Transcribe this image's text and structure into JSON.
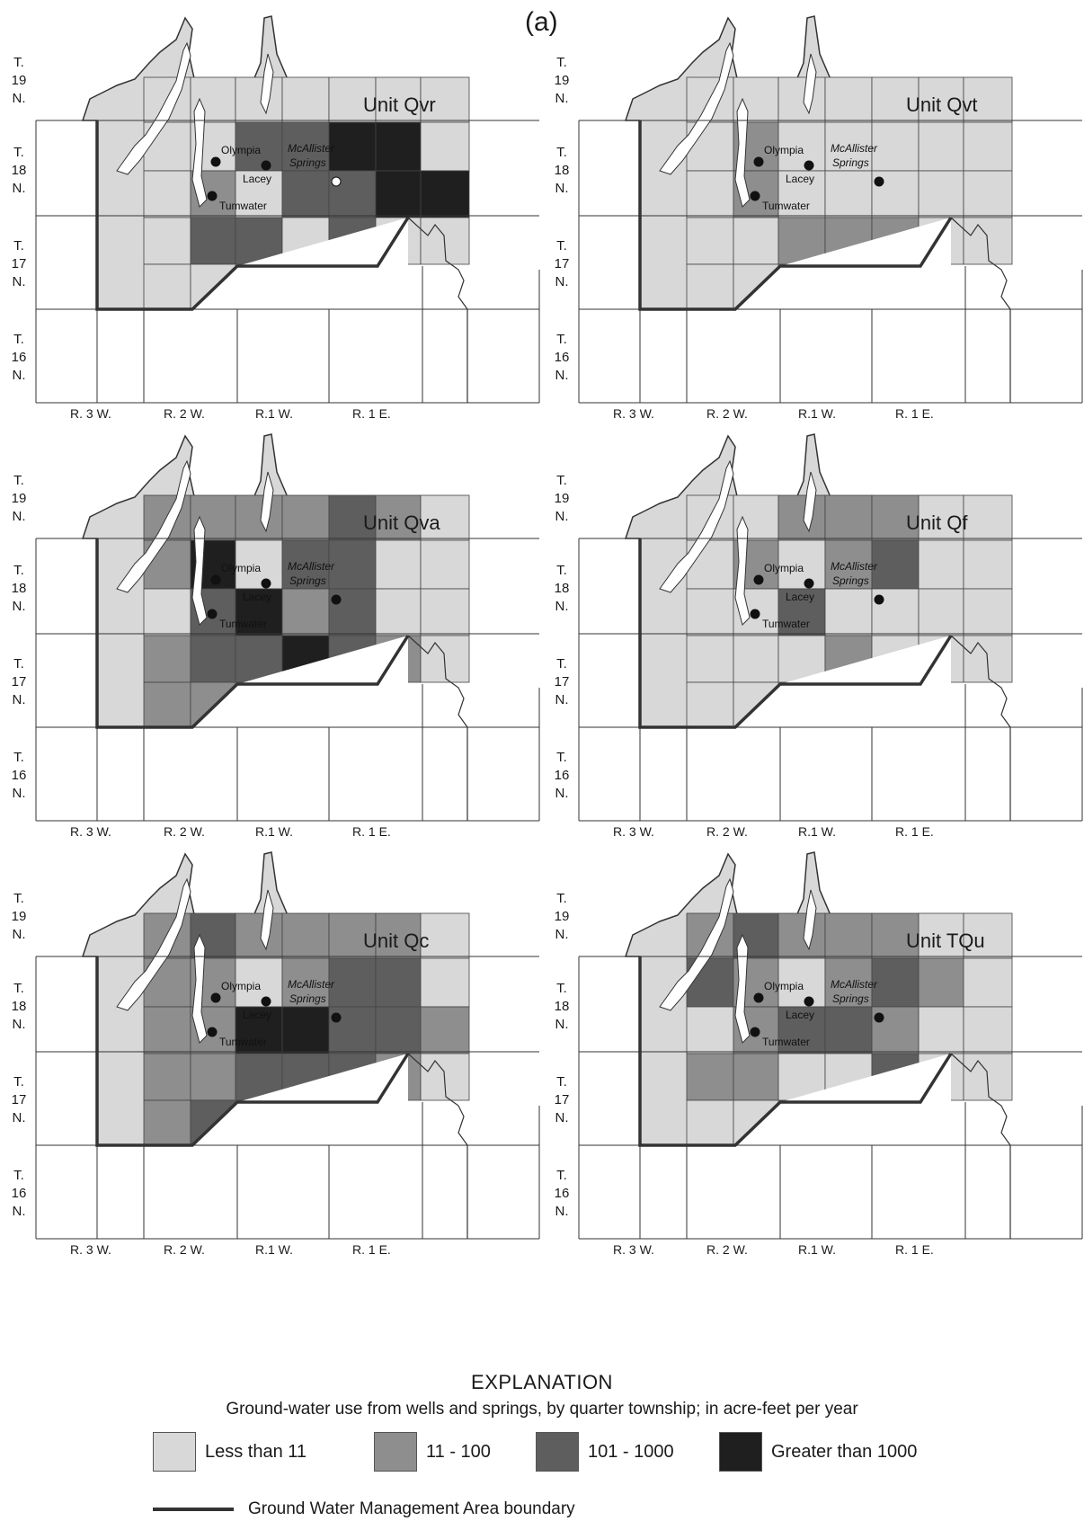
{
  "figure_label": "(a)",
  "colors": {
    "class0": "#d8d8d8",
    "class1": "#8e8e8e",
    "class2": "#5e5e5e",
    "class3": "#1f1f1f",
    "lines": "#333333",
    "water": "#ffffff"
  },
  "township_labels": [
    [
      "T.",
      "19",
      "N."
    ],
    [
      "T.",
      "18",
      "N."
    ],
    [
      "T.",
      "17",
      "N."
    ],
    [
      "T.",
      "16",
      "N."
    ]
  ],
  "range_labels": [
    "R. 3 W.",
    "R. 2 W.",
    "R.1 W.",
    "R. 1 E."
  ],
  "places": {
    "olympia": "Olympia",
    "lacey": "Lacey",
    "tumwater": "Tumwater",
    "mcallister1": "McAllister",
    "mcallister2": "Springs"
  },
  "panels": [
    {
      "title": "Unit Qvr",
      "cells": {
        "r1": [
          null,
          0,
          0,
          2,
          2,
          3,
          3,
          0
        ],
        "r2": [
          null,
          0,
          1,
          0,
          2,
          2,
          3,
          3
        ],
        "r3": [
          null,
          0,
          2,
          2,
          0,
          2,
          0,
          0
        ],
        "r4": [
          null,
          0,
          0,
          null,
          null,
          null,
          null,
          null
        ],
        "r0": [
          null,
          0,
          0,
          0,
          0,
          0,
          0,
          0
        ]
      }
    },
    {
      "title": "Unit Qvt",
      "cells": {
        "r1": [
          null,
          0,
          1,
          0,
          0,
          0,
          0,
          0
        ],
        "r2": [
          null,
          0,
          1,
          0,
          0,
          0,
          0,
          0
        ],
        "r3": [
          null,
          0,
          0,
          1,
          1,
          1,
          0,
          0
        ],
        "r4": [
          null,
          0,
          0,
          null,
          null,
          null,
          null,
          null
        ],
        "r0": [
          null,
          0,
          0,
          0,
          0,
          0,
          0,
          0
        ]
      }
    },
    {
      "title": "Unit Qva",
      "cells": {
        "r1": [
          null,
          1,
          3,
          0,
          2,
          2,
          0,
          0
        ],
        "r2": [
          null,
          0,
          2,
          3,
          1,
          2,
          0,
          0
        ],
        "r3": [
          null,
          1,
          2,
          2,
          3,
          2,
          1,
          0
        ],
        "r4": [
          null,
          1,
          1,
          null,
          null,
          null,
          null,
          null
        ],
        "r0": [
          null,
          1,
          1,
          1,
          1,
          2,
          1,
          0
        ]
      }
    },
    {
      "title": "Unit Qf",
      "cells": {
        "r1": [
          null,
          0,
          1,
          0,
          1,
          2,
          0,
          0
        ],
        "r2": [
          null,
          0,
          0,
          2,
          0,
          0,
          0,
          0
        ],
        "r3": [
          null,
          0,
          0,
          0,
          1,
          0,
          0,
          0
        ],
        "r4": [
          null,
          0,
          0,
          null,
          null,
          null,
          null,
          null
        ],
        "r0": [
          null,
          0,
          0,
          1,
          1,
          1,
          0,
          0
        ]
      }
    },
    {
      "title": "Unit Qc",
      "cells": {
        "r1": [
          null,
          1,
          1,
          0,
          1,
          2,
          2,
          0
        ],
        "r2": [
          null,
          1,
          1,
          3,
          3,
          2,
          2,
          1
        ],
        "r3": [
          null,
          1,
          1,
          2,
          2,
          2,
          1,
          0
        ],
        "r4": [
          null,
          1,
          2,
          0,
          null,
          null,
          null,
          null
        ],
        "r0": [
          null,
          1,
          2,
          1,
          1,
          1,
          1,
          0
        ]
      }
    },
    {
      "title": "Unit TQu",
      "cells": {
        "r1": [
          null,
          2,
          1,
          0,
          1,
          2,
          1,
          0
        ],
        "r2": [
          null,
          0,
          1,
          2,
          2,
          1,
          0,
          0
        ],
        "r3": [
          null,
          1,
          1,
          0,
          0,
          2,
          0,
          0
        ],
        "r4": [
          null,
          0,
          0,
          null,
          null,
          null,
          null,
          null
        ],
        "r0": [
          null,
          1,
          2,
          1,
          1,
          1,
          0,
          0
        ]
      }
    }
  ],
  "explanation": {
    "title": "EXPLANATION",
    "subtitle": "Ground-water use from wells and springs, by quarter township; in acre-feet per year",
    "legend": [
      {
        "label": "Less than 11",
        "color": "#d8d8d8"
      },
      {
        "label": "11 - 100",
        "color": "#8e8e8e"
      },
      {
        "label": "101 - 1000",
        "color": "#5e5e5e"
      },
      {
        "label": "Greater than 1000",
        "color": "#1f1f1f"
      }
    ],
    "boundary_label": "Ground Water Management Area boundary"
  }
}
